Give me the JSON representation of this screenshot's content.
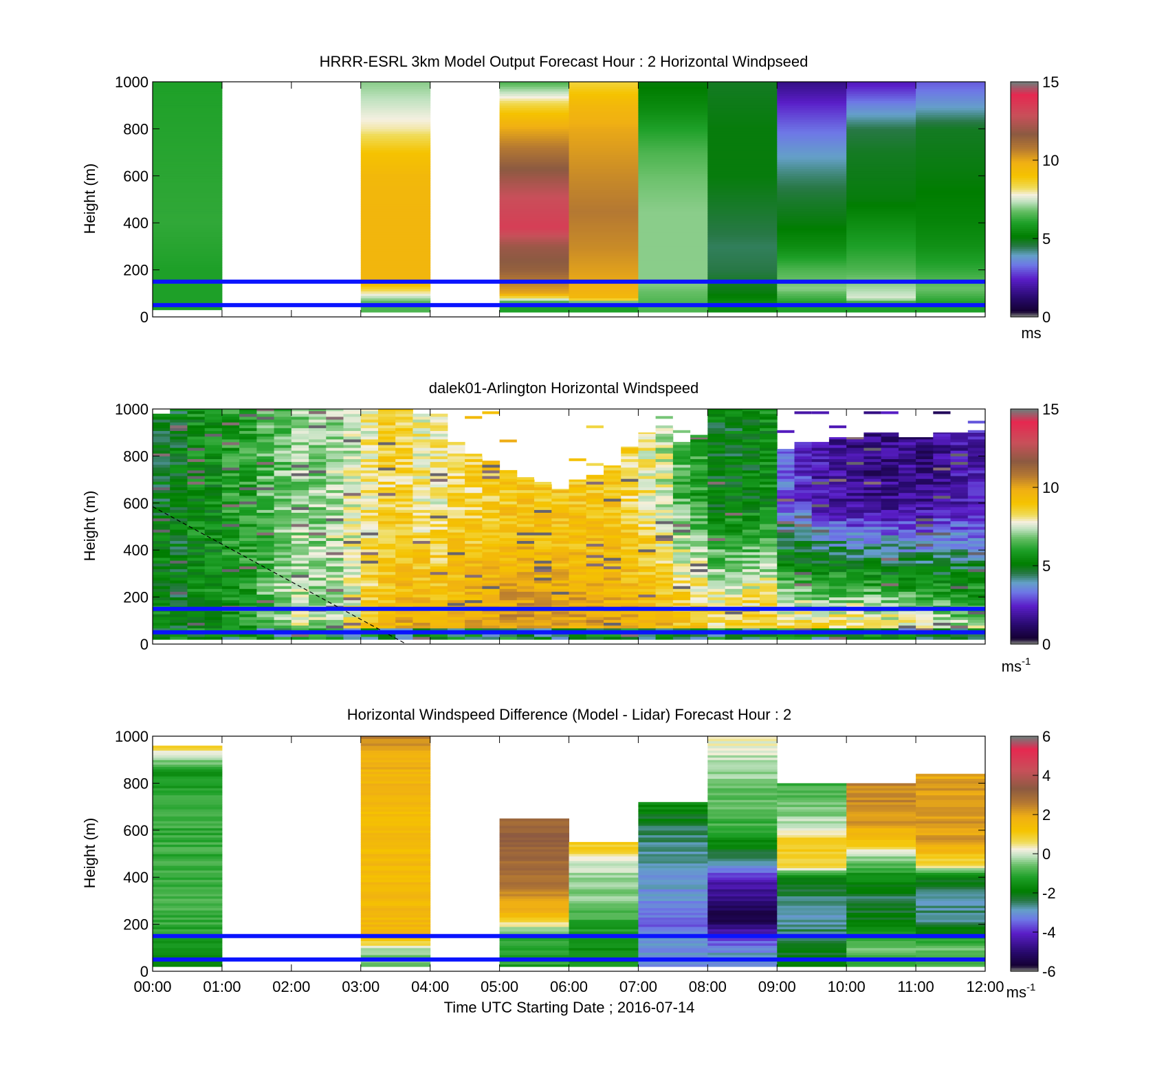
{
  "figure": {
    "xlabel": "Time UTC  Starting Date ; 2016-07-14",
    "x_tick_labels": [
      "00:00",
      "01:00",
      "02:00",
      "03:00",
      "04:00",
      "05:00",
      "06:00",
      "07:00",
      "08:00",
      "09:00",
      "10:00",
      "11:00",
      "12:00"
    ],
    "reference_lines_m": [
      150,
      50
    ],
    "reference_line_color": "#0a14ff"
  },
  "chart_data": [
    {
      "type": "heatmap",
      "title": "HRRR-ESRL 3km Model Output   Forecast Hour : 2 Horizontal Windpseed",
      "ylabel": "Height (m)",
      "y_ticks": [
        "0",
        "200",
        "400",
        "600",
        "800",
        "1000"
      ],
      "ylim": [
        0,
        1000
      ],
      "xlim": [
        "00:00",
        "12:00"
      ],
      "colorbar": {
        "ticks": [
          "0",
          "5",
          "10",
          "15"
        ],
        "range": [
          0,
          15
        ],
        "unit": "ms",
        "unit_sup": ""
      },
      "x_hours": [
        0,
        1,
        2,
        3,
        4,
        5,
        6,
        7,
        8,
        9,
        10,
        11
      ],
      "columns": [
        {
          "hour": 0,
          "top": 1000,
          "bottom": 30,
          "levels": [
            [
              1000,
              6
            ],
            [
              400,
              6.2
            ],
            [
              200,
              6
            ],
            [
              150,
              6
            ]
          ]
        },
        {
          "hour": 1,
          "top": 0,
          "bottom": 0,
          "levels": []
        },
        {
          "hour": 2,
          "top": 0,
          "bottom": 0,
          "levels": []
        },
        {
          "hour": 3,
          "top": 1000,
          "bottom": 20,
          "levels": [
            [
              1000,
              7
            ],
            [
              900,
              7.5
            ],
            [
              800,
              8
            ],
            [
              700,
              9
            ],
            [
              600,
              9.5
            ],
            [
              400,
              9.6
            ],
            [
              150,
              9.6
            ],
            [
              60,
              6.5
            ]
          ]
        },
        {
          "hour": 4,
          "top": 0,
          "bottom": 0,
          "levels": []
        },
        {
          "hour": 5,
          "top": 1000,
          "bottom": 20,
          "levels": [
            [
              1000,
              6.5
            ],
            [
              900,
              8.5
            ],
            [
              800,
              10
            ],
            [
              700,
              11
            ],
            [
              600,
              12
            ],
            [
              500,
              13
            ],
            [
              380,
              13.5
            ],
            [
              300,
              12
            ],
            [
              200,
              11.5
            ],
            [
              100,
              10
            ],
            [
              60,
              6
            ]
          ]
        },
        {
          "hour": 6,
          "top": 1000,
          "bottom": 20,
          "levels": [
            [
              1000,
              8.5
            ],
            [
              900,
              9.5
            ],
            [
              800,
              10
            ],
            [
              600,
              10.5
            ],
            [
              450,
              10.8
            ],
            [
              300,
              10.5
            ],
            [
              150,
              10
            ],
            [
              80,
              9.5
            ],
            [
              60,
              6
            ]
          ]
        },
        {
          "hour": 7,
          "top": 1000,
          "bottom": 20,
          "levels": [
            [
              1000,
              5
            ],
            [
              880,
              5.5
            ],
            [
              800,
              6
            ],
            [
              700,
              6.5
            ],
            [
              600,
              6.8
            ],
            [
              450,
              7
            ],
            [
              300,
              7
            ],
            [
              150,
              7
            ],
            [
              60,
              6.5
            ]
          ]
        },
        {
          "hour": 8,
          "top": 1000,
          "bottom": 20,
          "levels": [
            [
              1000,
              4.8
            ],
            [
              800,
              5
            ],
            [
              600,
              5
            ],
            [
              400,
              4.6
            ],
            [
              300,
              4.4
            ],
            [
              200,
              4.5
            ],
            [
              100,
              5
            ],
            [
              60,
              5.5
            ]
          ]
        },
        {
          "hour": 9,
          "top": 1000,
          "bottom": 20,
          "levels": [
            [
              1000,
              1.5
            ],
            [
              900,
              2.5
            ],
            [
              800,
              3.2
            ],
            [
              700,
              3.8
            ],
            [
              600,
              4.3
            ],
            [
              500,
              4.7
            ],
            [
              400,
              5
            ],
            [
              300,
              5.5
            ],
            [
              200,
              6.5
            ],
            [
              120,
              7
            ],
            [
              60,
              6
            ]
          ]
        },
        {
          "hour": 10,
          "top": 1000,
          "bottom": 20,
          "levels": [
            [
              1000,
              2.2
            ],
            [
              900,
              3.5
            ],
            [
              800,
              4.5
            ],
            [
              700,
              4.8
            ],
            [
              500,
              5
            ],
            [
              400,
              5.5
            ],
            [
              300,
              6
            ],
            [
              200,
              6.5
            ],
            [
              120,
              7.2
            ],
            [
              80,
              7.6
            ],
            [
              60,
              6
            ]
          ]
        },
        {
          "hour": 11,
          "top": 1000,
          "bottom": 20,
          "levels": [
            [
              1000,
              3
            ],
            [
              900,
              3.8
            ],
            [
              800,
              4.8
            ],
            [
              600,
              5
            ],
            [
              400,
              5.3
            ],
            [
              300,
              5.6
            ],
            [
              200,
              6.2
            ],
            [
              120,
              6.8
            ],
            [
              60,
              6
            ]
          ]
        }
      ]
    },
    {
      "type": "heatmap",
      "title": "dalek01-Arlington  Horizontal Windspeed",
      "ylabel": "Height (m)",
      "y_ticks": [
        "0",
        "200",
        "400",
        "600",
        "800",
        "1000"
      ],
      "ylim": [
        0,
        1000
      ],
      "xlim": [
        "00:00",
        "12:00"
      ],
      "colorbar": {
        "ticks": [
          "0",
          "5",
          "10",
          "15"
        ],
        "range": [
          0,
          15
        ],
        "unit": "ms",
        "unit_sup": "-1"
      },
      "column_hours": [
        0,
        0.25,
        0.5,
        0.75,
        1,
        1.25,
        1.5,
        1.75,
        2,
        2.25,
        2.5,
        2.75,
        3,
        3.25,
        3.5,
        3.75,
        4,
        4.25,
        4.5,
        4.75,
        5,
        5.25,
        5.5,
        5.75,
        6,
        6.25,
        6.5,
        6.75,
        7,
        7.25,
        7.5,
        7.75,
        8,
        8.25,
        8.5,
        8.75,
        9,
        9.25,
        9.5,
        9.75,
        10,
        10.25,
        10.5,
        10.75,
        11,
        11.25,
        11.5,
        11.75
      ],
      "column_tops": [
        980,
        1000,
        1000,
        1000,
        1000,
        1000,
        1000,
        1000,
        1000,
        1000,
        1000,
        1000,
        1000,
        1000,
        1000,
        980,
        980,
        860,
        800,
        780,
        740,
        700,
        680,
        660,
        700,
        720,
        760,
        840,
        900,
        920,
        860,
        880,
        1000,
        1000,
        1000,
        1000,
        820,
        860,
        860,
        880,
        880,
        900,
        900,
        880,
        880,
        900,
        900,
        900
      ],
      "profile_low": [
        5.5,
        5,
        5.5,
        5.5,
        5.8,
        6,
        6.5,
        7,
        7.5,
        7.2,
        7.5,
        8,
        9,
        9.5,
        10,
        10,
        9.8,
        10,
        10.2,
        10.2,
        10.5,
        10.5,
        10.4,
        10.3,
        10.2,
        10.2,
        10,
        10,
        10,
        9.8,
        9.5,
        9.5,
        9,
        9.2,
        9.5,
        9.3,
        9,
        9.2,
        9.3,
        9.4,
        9.5,
        9.3,
        9,
        8.8,
        8.5,
        8.2,
        8,
        8
      ],
      "profile_high": [
        5,
        5,
        5.5,
        5.5,
        6,
        6,
        6.5,
        6.8,
        7,
        7,
        7.2,
        7.5,
        8,
        8.5,
        8.5,
        8,
        8,
        8.5,
        8.5,
        8.8,
        9,
        9,
        9,
        9,
        9,
        9,
        9,
        8.5,
        8,
        7.5,
        6.5,
        6,
        5,
        5,
        5.2,
        5.5,
        3,
        2.5,
        2,
        1.8,
        1.5,
        1.5,
        1.5,
        1.6,
        1.5,
        1.8,
        2,
        2
      ]
    },
    {
      "type": "heatmap",
      "title": "Horizontal Windspeed Difference (Model - Lidar) Forecast Hour : 2",
      "ylabel": "Height (m)",
      "y_ticks": [
        "0",
        "200",
        "400",
        "600",
        "800",
        "1000"
      ],
      "ylim": [
        0,
        1000
      ],
      "xlim": [
        "00:00",
        "12:00"
      ],
      "colorbar": {
        "ticks": [
          "-6",
          "-4",
          "-2",
          "0",
          "2",
          "4",
          "6"
        ],
        "range": [
          -6,
          6
        ],
        "unit": "ms",
        "unit_sup": "-1"
      },
      "x_hours": [
        0,
        1,
        2,
        3,
        4,
        5,
        6,
        7,
        8,
        9,
        10,
        11
      ],
      "columns": [
        {
          "hour": 0,
          "top": 960,
          "bottom": 20,
          "levels": [
            [
              960,
              0.8
            ],
            [
              900,
              -0.3
            ],
            [
              850,
              -1.5
            ],
            [
              700,
              -1
            ],
            [
              500,
              -1
            ],
            [
              300,
              -0.8
            ],
            [
              150,
              -1.2
            ],
            [
              60,
              -1.5
            ]
          ]
        },
        {
          "hour": 1,
          "top": 0,
          "bottom": 0,
          "levels": []
        },
        {
          "hour": 2,
          "top": 0,
          "bottom": 0,
          "levels": []
        },
        {
          "hour": 3,
          "top": 1000,
          "bottom": 20,
          "levels": [
            [
              1000,
              2.5
            ],
            [
              900,
              1.8
            ],
            [
              700,
              1.5
            ],
            [
              500,
              1.5
            ],
            [
              300,
              1.6
            ],
            [
              150,
              1.6
            ],
            [
              80,
              -0.5
            ],
            [
              60,
              -0.5
            ]
          ]
        },
        {
          "hour": 4,
          "top": 0,
          "bottom": 0,
          "levels": []
        },
        {
          "hour": 5,
          "top": 650,
          "bottom": 20,
          "levels": [
            [
              650,
              3
            ],
            [
              500,
              3.2
            ],
            [
              350,
              2.6
            ],
            [
              250,
              1.7
            ],
            [
              150,
              -1
            ],
            [
              80,
              -1.2
            ]
          ]
        },
        {
          "hour": 6,
          "top": 550,
          "bottom": 20,
          "levels": [
            [
              550,
              1.2
            ],
            [
              480,
              0.3
            ],
            [
              400,
              -0.3
            ],
            [
              300,
              -0.5
            ],
            [
              150,
              -1.5
            ],
            [
              60,
              -1.5
            ]
          ]
        },
        {
          "hour": 7,
          "top": 720,
          "bottom": 20,
          "levels": [
            [
              720,
              -1.5
            ],
            [
              600,
              -2.5
            ],
            [
              450,
              -2.8
            ],
            [
              300,
              -3.2
            ],
            [
              200,
              -3.5
            ],
            [
              150,
              -3
            ],
            [
              60,
              -3
            ]
          ]
        },
        {
          "hour": 8,
          "top": 1000,
          "bottom": 20,
          "levels": [
            [
              1000,
              0.3
            ],
            [
              800,
              -0.5
            ],
            [
              600,
              -1
            ],
            [
              450,
              -3
            ],
            [
              380,
              -4.3
            ],
            [
              300,
              -5
            ],
            [
              220,
              -5.6
            ],
            [
              150,
              -4
            ],
            [
              80,
              -3
            ]
          ]
        },
        {
          "hour": 9,
          "top": 800,
          "bottom": 20,
          "levels": [
            [
              800,
              -1
            ],
            [
              650,
              -0.3
            ],
            [
              550,
              1
            ],
            [
              450,
              0.8
            ],
            [
              400,
              -2
            ],
            [
              250,
              -2.8
            ],
            [
              150,
              -2.5
            ],
            [
              60,
              -2
            ]
          ]
        },
        {
          "hour": 10,
          "top": 800,
          "bottom": 20,
          "levels": [
            [
              800,
              2.5
            ],
            [
              650,
              2.3
            ],
            [
              550,
              1.2
            ],
            [
              480,
              -0.5
            ],
            [
              400,
              -1.5
            ],
            [
              300,
              -2.5
            ],
            [
              200,
              -1.8
            ],
            [
              100,
              -0.5
            ],
            [
              60,
              -1
            ]
          ]
        },
        {
          "hour": 11,
          "top": 840,
          "bottom": 20,
          "levels": [
            [
              840,
              2
            ],
            [
              700,
              2.3
            ],
            [
              550,
              2.1
            ],
            [
              450,
              0.5
            ],
            [
              400,
              -2
            ],
            [
              300,
              -2.8
            ],
            [
              200,
              -2.5
            ],
            [
              100,
              -0.5
            ],
            [
              60,
              -1
            ]
          ]
        }
      ]
    }
  ]
}
